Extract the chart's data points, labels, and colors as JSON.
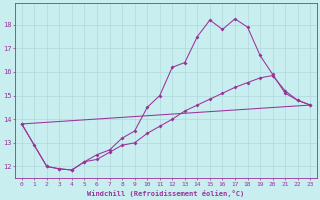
{
  "xlabel": "Windchill (Refroidissement éolien,°C)",
  "bg_color": "#c8eef0",
  "grid_color": "#b0d8da",
  "line_color": "#993399",
  "xlim": [
    -0.5,
    23.5
  ],
  "ylim": [
    11.5,
    18.9
  ],
  "xticks": [
    0,
    1,
    2,
    3,
    4,
    5,
    6,
    7,
    8,
    9,
    10,
    11,
    12,
    13,
    14,
    15,
    16,
    17,
    18,
    19,
    20,
    21,
    22,
    23
  ],
  "yticks": [
    12,
    13,
    14,
    15,
    16,
    17,
    18
  ],
  "line1_x": [
    0,
    1,
    2,
    3,
    4,
    5,
    6,
    7,
    8,
    9,
    10,
    11,
    12,
    13,
    14,
    15,
    16,
    17,
    18,
    19,
    20,
    21,
    22,
    23
  ],
  "line1_y": [
    13.8,
    12.9,
    12.0,
    11.9,
    11.85,
    12.2,
    12.5,
    12.7,
    13.2,
    13.5,
    14.5,
    15.0,
    16.2,
    16.4,
    17.5,
    18.2,
    17.8,
    18.25,
    17.9,
    16.7,
    15.9,
    15.1,
    14.8,
    14.6
  ],
  "line2_x": [
    0,
    2,
    3,
    4,
    5,
    6,
    7,
    8,
    9,
    10,
    11,
    12,
    13,
    14,
    15,
    16,
    17,
    18,
    19,
    20,
    21,
    22,
    23
  ],
  "line2_y": [
    13.8,
    12.0,
    11.9,
    11.85,
    12.2,
    12.3,
    12.6,
    12.9,
    13.0,
    13.4,
    13.7,
    14.0,
    14.35,
    14.6,
    14.85,
    15.1,
    15.35,
    15.55,
    15.75,
    15.85,
    15.2,
    14.8,
    14.6
  ],
  "line3_x": [
    0,
    23
  ],
  "line3_y": [
    13.8,
    14.6
  ]
}
